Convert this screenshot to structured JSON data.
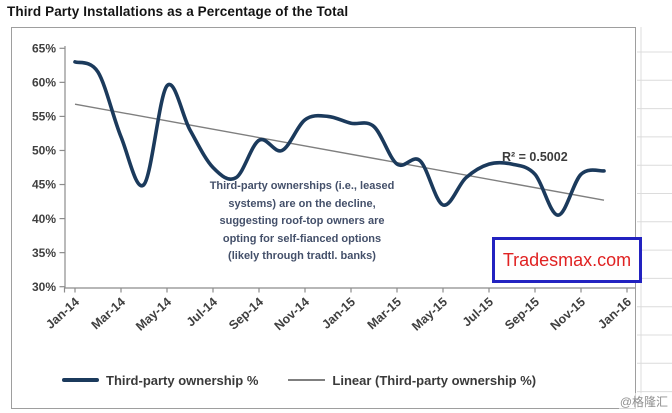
{
  "page": {
    "title": "Third Party Installations as a Percentage of the Total",
    "watermark_bottom_right": "@格隆汇"
  },
  "overlay": {
    "brand_text": "Tradesmax.com",
    "brand_text_color": "#e02222",
    "brand_border_color": "#2222c0"
  },
  "chart_data": {
    "type": "line",
    "title": "Third Party Installations as a Percentage of the Total",
    "categories": [
      "Jan-14",
      "Feb-14",
      "Mar-14",
      "Apr-14",
      "May-14",
      "Jun-14",
      "Jul-14",
      "Aug-14",
      "Sep-14",
      "Oct-14",
      "Nov-14",
      "Dec-14",
      "Jan-15",
      "Feb-15",
      "Mar-15",
      "Apr-15",
      "May-15",
      "Jun-15",
      "Jul-15",
      "Aug-15",
      "Sep-15",
      "Oct-15",
      "Nov-15",
      "Dec-15",
      "Jan-16"
    ],
    "x_tick_labels": [
      "Jan-14",
      "Mar-14",
      "May-14",
      "Jul-14",
      "Sep-14",
      "Nov-14",
      "Jan-15",
      "Mar-15",
      "May-15",
      "Jul-15",
      "Sep-15",
      "Nov-15",
      "Jan-16"
    ],
    "series": [
      {
        "name": "Third-party ownership %",
        "style": "smooth-line",
        "color": "#1b3a5c",
        "values": [
          63,
          61.5,
          52,
          45,
          59.5,
          53,
          47.5,
          46,
          51.5,
          50,
          54.5,
          55,
          54,
          53.5,
          48,
          48.5,
          42,
          46,
          48,
          48,
          46.5,
          40.5,
          46.5,
          47,
          null
        ]
      },
      {
        "name": "Linear (Third-party ownership %)",
        "style": "trendline",
        "color": "#7f7f7f",
        "start_value": 56.8,
        "end_value": 42.7,
        "r_squared_label": "R² = 0.5002"
      }
    ],
    "ylim": [
      30,
      65
    ],
    "ytick_labels": [
      "65%",
      "60%",
      "55%",
      "50%",
      "45%",
      "40%",
      "35%",
      "30%"
    ],
    "xlabel": "",
    "ylabel": "",
    "grid": "off",
    "legend_position": "bottom",
    "annotation": "Third-party ownerships (i.e., leased\nsystems) are on the decline,\nsuggesting roof-top owners are\nopting for self-fianced options\n(likely through tradtl. banks)"
  }
}
